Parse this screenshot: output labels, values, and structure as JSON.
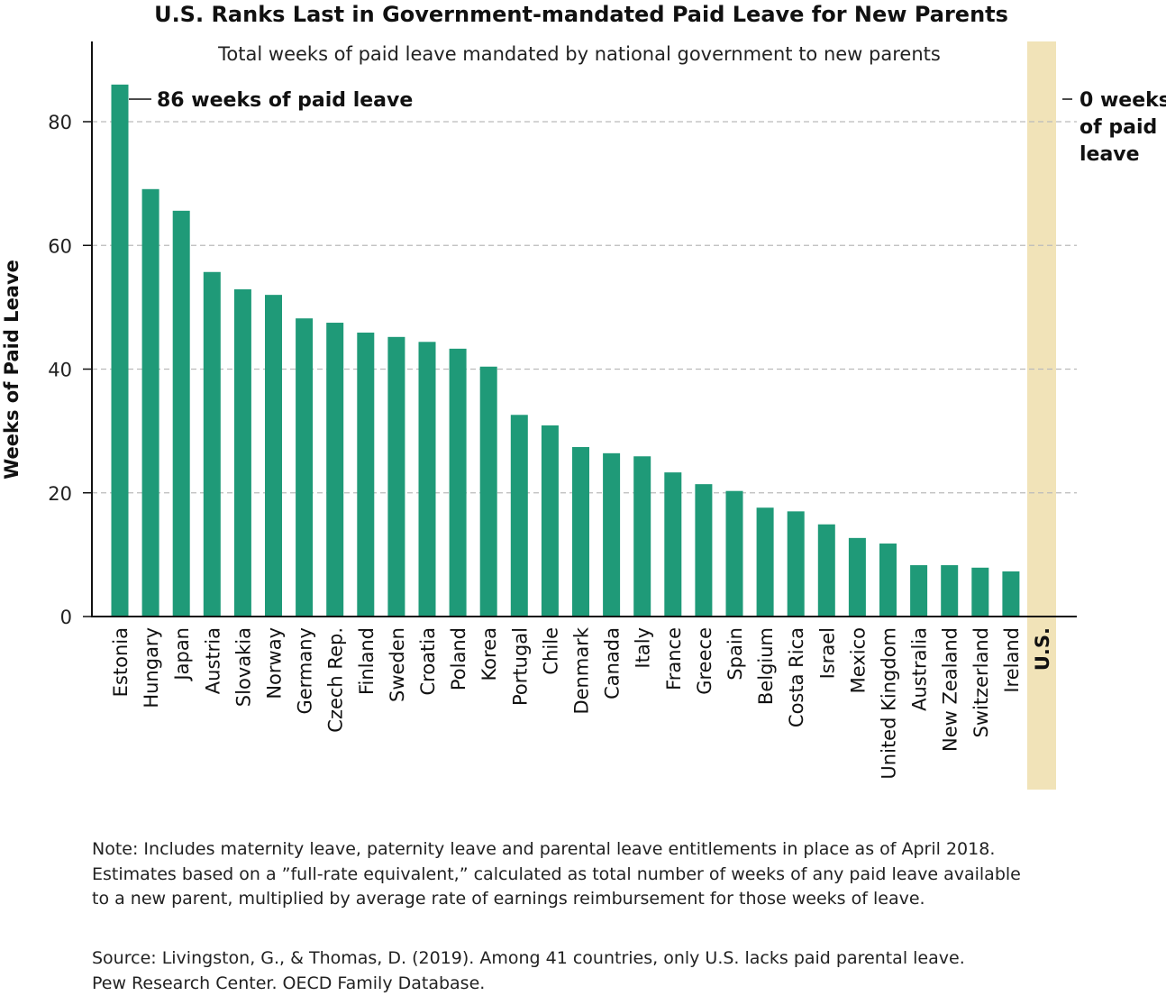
{
  "chart_data": {
    "type": "bar",
    "title": "U.S. Ranks Last in Government-mandated Paid Leave for New Parents",
    "subtitle": "Total weeks of paid leave mandated by national government to new parents",
    "xlabel": "",
    "ylabel": "Weeks of Paid Leave",
    "ylim": [
      0,
      92
    ],
    "yticks": [
      0,
      20,
      40,
      60,
      80
    ],
    "grid": true,
    "categories": [
      "Estonia",
      "Hungary",
      "Japan",
      "Austria",
      "Slovakia",
      "Norway",
      "Germany",
      "Czech Rep.",
      "Finland",
      "Sweden",
      "Croatia",
      "Poland",
      "Korea",
      "Portugal",
      "Chile",
      "Denmark",
      "Canada",
      "Italy",
      "France",
      "Greece",
      "Spain",
      "Belgium",
      "Costa Rica",
      "Israel",
      "Mexico",
      "United Kingdom",
      "Australia",
      "New Zealand",
      "Switzerland",
      "Ireland",
      "U.S."
    ],
    "values": [
      86,
      69.1,
      65.6,
      55.7,
      52.9,
      52.0,
      48.2,
      47.5,
      45.9,
      45.2,
      44.4,
      43.3,
      40.4,
      32.6,
      30.9,
      27.4,
      26.4,
      25.9,
      23.3,
      21.4,
      20.3,
      17.6,
      17.0,
      14.9,
      12.7,
      11.8,
      8.3,
      8.3,
      7.9,
      7.3,
      0
    ],
    "annotations": {
      "max": "86 weeks of paid leave",
      "us": [
        "0 weeks",
        "of paid",
        "leave"
      ]
    },
    "colors": {
      "bar": "#1f9a78",
      "highlight": "#f1e3b8",
      "grid": "#bbbbbb"
    }
  },
  "note": "Note: Includes maternity leave, paternity leave and parental leave entitlements in place as of April 2018.\nEstimates based on a ”full-rate equivalent,” calculated as total number of weeks of any paid leave available\nto a new parent, multiplied by average rate of earnings reimbursement for those weeks of leave.",
  "source": "Source: Livingston, G., & Thomas, D. (2019). Among 41 countries, only U.S. lacks paid parental leave.\nPew Research Center. OECD Family Database."
}
